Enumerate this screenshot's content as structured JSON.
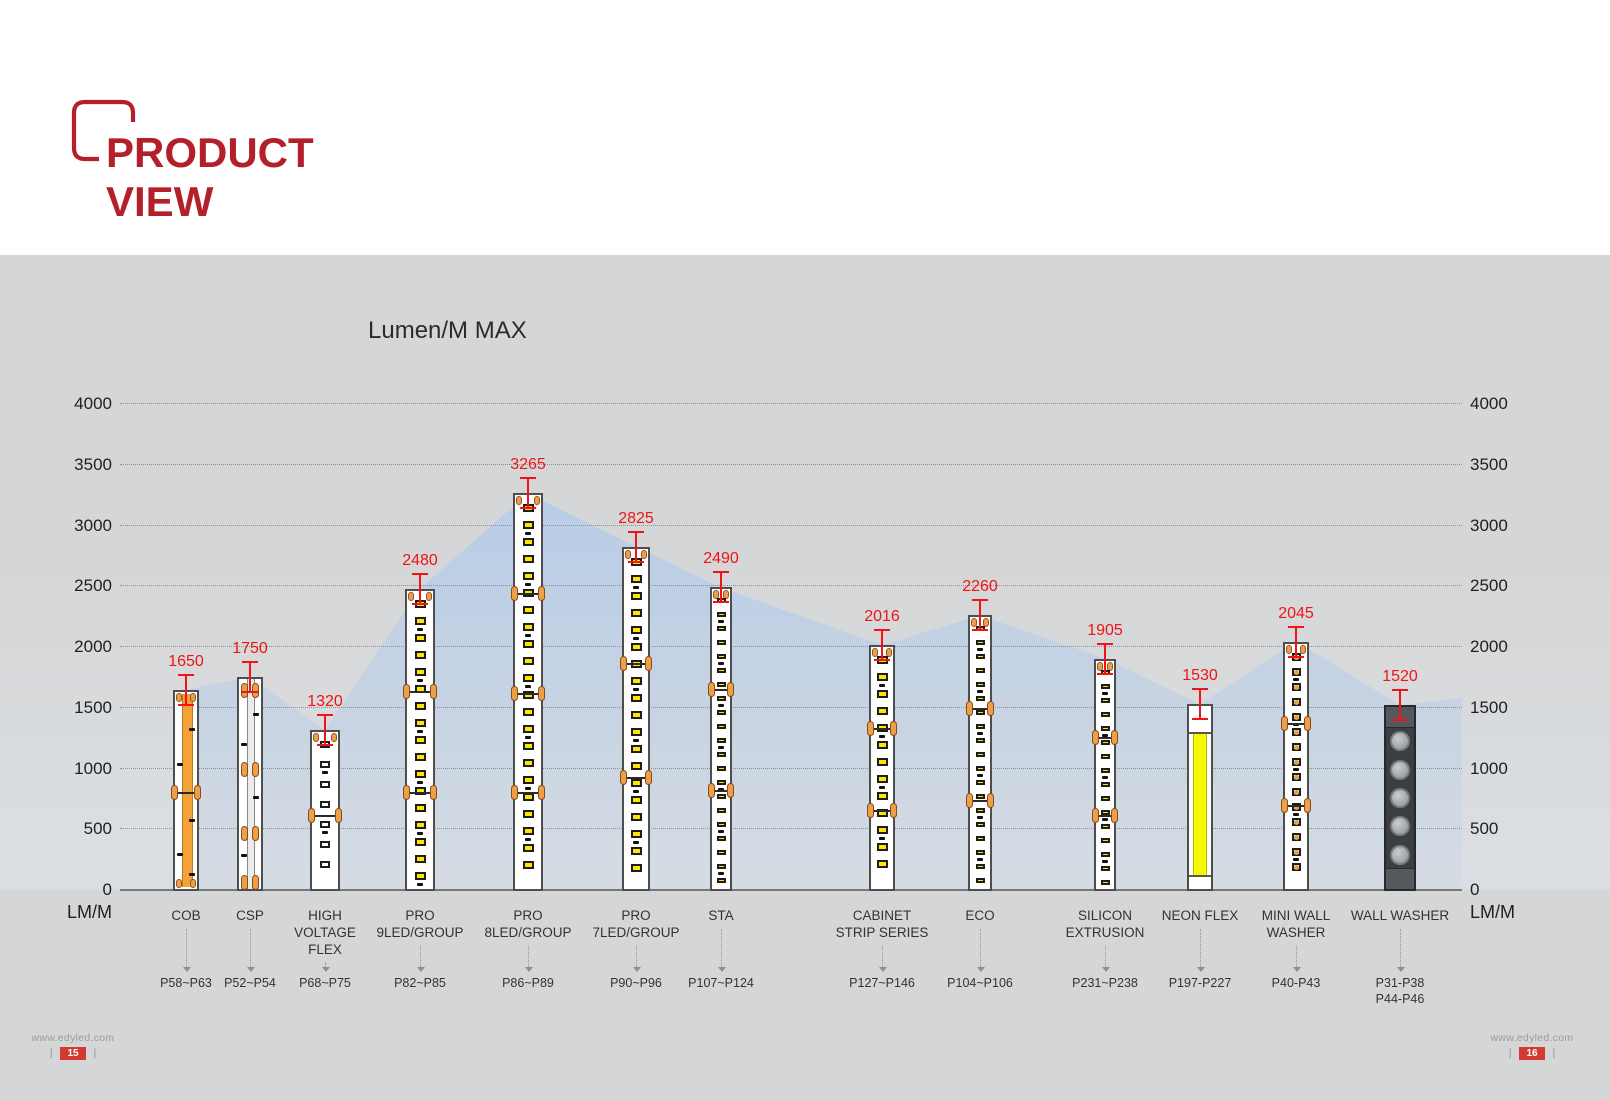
{
  "header": {
    "title_line1": "PRODUCT",
    "title_line2": "VIEW"
  },
  "chart": {
    "title": "Lumen/M MAX",
    "unit_label": "LM/M",
    "y_ticks": [
      0,
      500,
      1000,
      1500,
      2000,
      2500,
      3000,
      3500,
      4000
    ],
    "products": [
      {
        "label": "COB",
        "value": 1650,
        "pages": [
          "P58~P63"
        ],
        "pattern": "cob"
      },
      {
        "label": "CSP",
        "value": 1750,
        "pages": [
          "P52~P54"
        ],
        "pattern": "csp"
      },
      {
        "label": "HIGH\nVOLTAGE\nFLEX",
        "value": 1320,
        "pages": [
          "P68~P75"
        ],
        "pattern": "led-plain"
      },
      {
        "label": "PRO\n9LED/GROUP",
        "value": 2480,
        "pages": [
          "P82~P85"
        ],
        "pattern": "led"
      },
      {
        "label": "PRO\n8LED/GROUP",
        "value": 3265,
        "pages": [
          "P86~P89"
        ],
        "pattern": "led"
      },
      {
        "label": "PRO\n7LED/GROUP",
        "value": 2825,
        "pages": [
          "P90~P96"
        ],
        "pattern": "led"
      },
      {
        "label": "STA",
        "value": 2490,
        "pages": [
          "P107~P124"
        ],
        "pattern": "led-small"
      },
      {
        "label": "CABINET\nSTRIP SERIES",
        "value": 2016,
        "pages": [
          "P127~P146"
        ],
        "pattern": "led"
      },
      {
        "label": "ECO",
        "value": 2260,
        "pages": [
          "P104~P106"
        ],
        "pattern": "led-small"
      },
      {
        "label": "SILICON\nEXTRUSION",
        "value": 1905,
        "pages": [
          "P231~P238"
        ],
        "pattern": "led-small"
      },
      {
        "label": "NEON FLEX",
        "value": 1530,
        "pages": [
          "P197-P227"
        ],
        "pattern": "neon"
      },
      {
        "label": "MINI WALL\nWASHER",
        "value": 2045,
        "pages": [
          "P40-P43"
        ],
        "pattern": "led-mini"
      },
      {
        "label": "WALL WASHER",
        "value": 1520,
        "pages": [
          "P31-P38",
          "P44-P46"
        ],
        "pattern": "washer"
      }
    ]
  },
  "colors": {
    "accent_red": "#b3202a",
    "value_red": "#f21414",
    "area_blue": "#b7cde9",
    "led_yellow": "#ffe600",
    "neon_yellow": "#f7f700",
    "pad_orange": "#eda04c",
    "washer_dark": "#3c3f42"
  },
  "footer": {
    "left": {
      "url": "www.edyled.com",
      "page_number": "15"
    },
    "right": {
      "url": "www.edyled.com",
      "page_number": "16"
    }
  },
  "chart_data": {
    "type": "bar",
    "title": "Lumen/M MAX",
    "xlabel": "",
    "ylabel": "LM/M",
    "ylim": [
      0,
      4000
    ],
    "ytick_step": 500,
    "grid": true,
    "legend_position": "none",
    "categories": [
      "COB",
      "CSP",
      "HIGH VOLTAGE FLEX",
      "PRO 9LED/GROUP",
      "PRO 8LED/GROUP",
      "PRO 7LED/GROUP",
      "STA",
      "CABINET STRIP SERIES",
      "ECO",
      "SILICON EXTRUSION",
      "NEON FLEX",
      "MINI WALL WASHER",
      "WALL WASHER"
    ],
    "values": [
      1650,
      1750,
      1320,
      2480,
      3265,
      2825,
      2490,
      2016,
      2260,
      1905,
      1530,
      2045,
      1520
    ],
    "page_references": [
      "P58~P63",
      "P52~P54",
      "P68~P75",
      "P82~P85",
      "P86~P89",
      "P90~P96",
      "P107~P124",
      "P127~P146",
      "P104~P106",
      "P231~P238",
      "P197-P227",
      "P40-P43",
      "P31-P38 P44-P46"
    ],
    "annotations": "red capped error-bar marker with value label above each bar top; light-blue area silhouette connects bar tops"
  }
}
